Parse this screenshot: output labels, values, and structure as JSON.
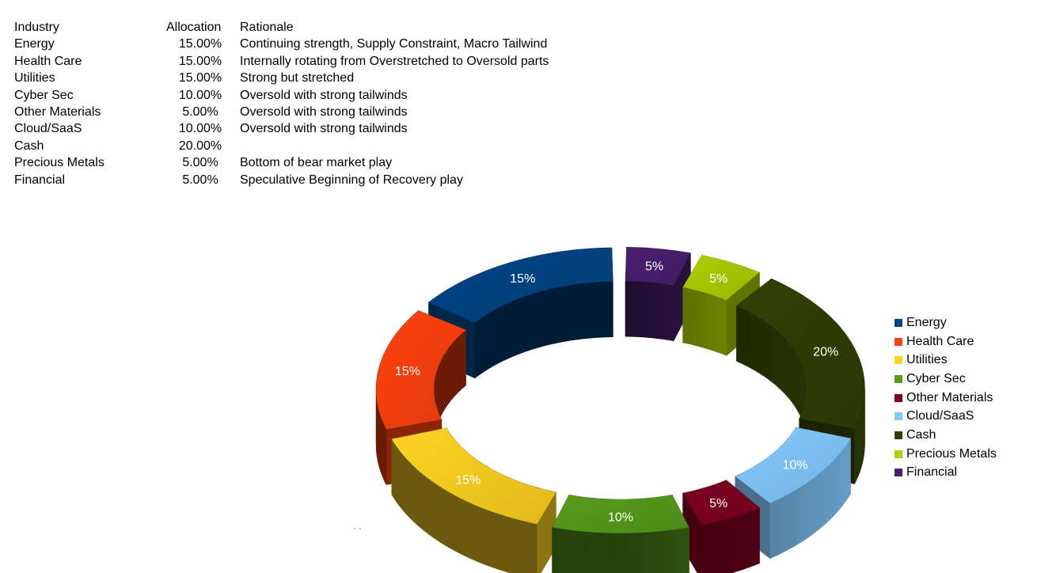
{
  "table": {
    "headers": {
      "industry": "Industry",
      "allocation": "Allocation",
      "rationale": "Rationale"
    },
    "rows": [
      {
        "industry": "Energy",
        "allocation": "15.00%",
        "rationale": "Continuing strength, Supply Constraint, Macro Tailwind"
      },
      {
        "industry": "Health Care",
        "allocation": "15.00%",
        "rationale": "Internally rotating from Overstretched to Oversold parts"
      },
      {
        "industry": "Utilities",
        "allocation": "15.00%",
        "rationale": "Strong but stretched"
      },
      {
        "industry": "Cyber Sec",
        "allocation": "10.00%",
        "rationale": "Oversold with strong tailwinds"
      },
      {
        "industry": "Other Materials",
        "allocation": "5.00%",
        "rationale": "Oversold with strong tailwinds"
      },
      {
        "industry": "Cloud/SaaS",
        "allocation": "10.00%",
        "rationale": "Oversold with strong tailwinds"
      },
      {
        "industry": "Cash",
        "allocation": "20.00%",
        "rationale": ""
      },
      {
        "industry": "Precious Metals",
        "allocation": "5.00%",
        "rationale": "Bottom of bear market play"
      },
      {
        "industry": "Financial",
        "allocation": "5.00%",
        "rationale": "Speculative Beginning of Recovery play"
      }
    ]
  },
  "chart_data": {
    "type": "pie",
    "style": "3d exploded donut",
    "legend_position": "right",
    "slices": [
      {
        "label": "Energy",
        "value": 15,
        "data_label": "15%",
        "color": "#004586"
      },
      {
        "label": "Health Care",
        "value": 15,
        "data_label": "15%",
        "color": "#ff420e"
      },
      {
        "label": "Utilities",
        "value": 15,
        "data_label": "15%",
        "color": "#ffd320"
      },
      {
        "label": "Cyber Sec",
        "value": 10,
        "data_label": "10%",
        "color": "#579d1c"
      },
      {
        "label": "Other Materials",
        "value": 5,
        "data_label": "5%",
        "color": "#7e0021"
      },
      {
        "label": "Cloud/SaaS",
        "value": 10,
        "data_label": "10%",
        "color": "#83caff"
      },
      {
        "label": "Cash",
        "value": 20,
        "data_label": "20%",
        "color": "#314004"
      },
      {
        "label": "Precious Metals",
        "value": 5,
        "data_label": "5%",
        "color": "#aecf00"
      },
      {
        "label": "Financial",
        "value": 5,
        "data_label": "5%",
        "color": "#4b1f6f"
      }
    ]
  },
  "stray_mark": "- -"
}
